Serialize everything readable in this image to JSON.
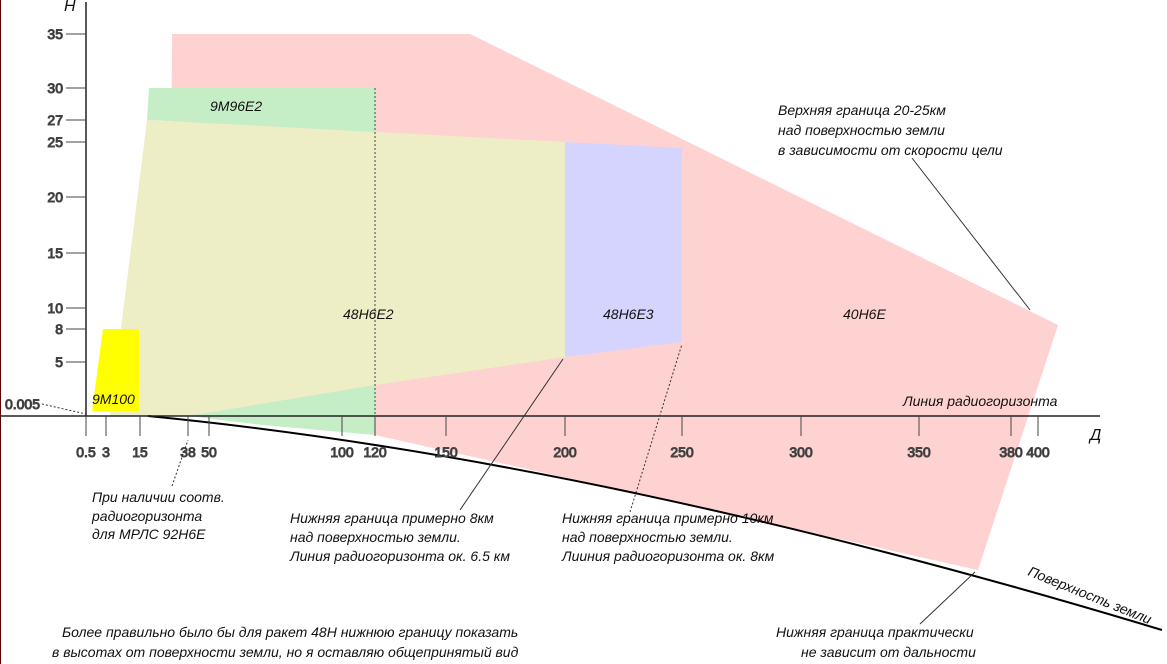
{
  "axes": {
    "y_label": "H",
    "x_label": "Д",
    "y_ticks": [
      {
        "value": 35,
        "label": "35"
      },
      {
        "value": 30,
        "label": "30"
      },
      {
        "value": 27,
        "label": "27"
      },
      {
        "value": 25,
        "label": "25"
      },
      {
        "value": 20,
        "label": "20"
      },
      {
        "value": 15,
        "label": "15"
      },
      {
        "value": 10,
        "label": "10"
      },
      {
        "value": 8,
        "label": "8"
      },
      {
        "value": 5,
        "label": "5"
      },
      {
        "value": 0.005,
        "label": "0.005"
      }
    ],
    "x_ticks": [
      {
        "value": 0.5,
        "label": "0.5"
      },
      {
        "value": 3,
        "label": "3"
      },
      {
        "value": 15,
        "label": "15"
      },
      {
        "value": 38,
        "label": "38"
      },
      {
        "value": 50,
        "label": "50"
      },
      {
        "value": 100,
        "label": "100"
      },
      {
        "value": 120,
        "label": "120"
      },
      {
        "value": 150,
        "label": "150"
      },
      {
        "value": 200,
        "label": "200"
      },
      {
        "value": 250,
        "label": "250"
      },
      {
        "value": 300,
        "label": "300"
      },
      {
        "value": 350,
        "label": "350"
      },
      {
        "value": 380,
        "label": "380"
      },
      {
        "value": 400,
        "label": "400"
      }
    ]
  },
  "zones": [
    {
      "id": "40n6e",
      "label": "40Н6Е",
      "color": "#ffd2d2"
    },
    {
      "id": "9m96e2",
      "label": "9М96Е2",
      "color": "#c6eec6"
    },
    {
      "id": "48n6e2",
      "label": "48Н6Е2",
      "color": "#eeeec6"
    },
    {
      "id": "48n6e3",
      "label": "48Н6Е3",
      "color": "#d4d4ff"
    },
    {
      "id": "9m100",
      "label": "9М100",
      "color": "#ffff00"
    }
  ],
  "annotations": {
    "radio_horizon_line": "Линия радиогоризонта",
    "earth_surface": "Поверхность земли",
    "upper_bound": [
      "Верхняя граница 20-25км",
      "над поверхностью земли",
      "в зависимости от скорости цели"
    ],
    "mrls_note": [
      "При наличии соотв.",
      "радиогоризонта",
      "для МРЛС 92Н6Е"
    ],
    "lower_8km": [
      "Нижняя граница примерно 8км",
      "над поверхностью земли.",
      "Линия радиогоризонта ок. 6.5 км"
    ],
    "lower_10km": [
      "Нижняя граница примерно 10км",
      "над поверхностью земли.",
      "Лииния радиогоризонта ок. 8км"
    ],
    "lower_independent": [
      "Нижняя граница практически",
      "не зависит от дальности"
    ],
    "footnote": [
      "Более правильно было бы для ракет 48Н нижнюю границу показать",
      "в высотах от поверхности земли, но я оставляю общепринятый вид"
    ]
  }
}
